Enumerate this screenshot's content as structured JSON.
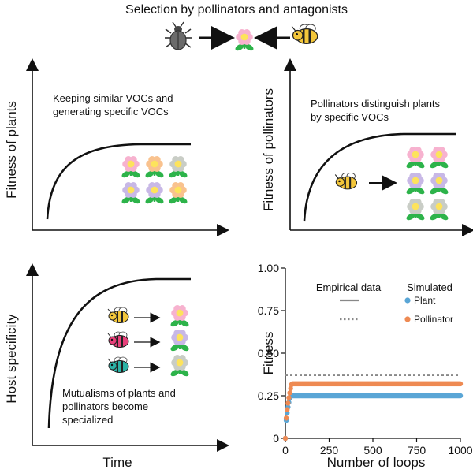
{
  "title": "Selection by pollinators and antagonists",
  "icons": {
    "header": [
      "beetle-icon",
      "flower-icon",
      "bee-icon"
    ],
    "flower_colors": {
      "pink": "#f7b2cf",
      "lavender": "#c8b8e6",
      "orange": "#f9c28e",
      "grey": "#c9cdc6",
      "center": "#fde35c",
      "leaf": "#2db34a"
    },
    "bee_variants": [
      "bee-yellow-icon",
      "bee-pink-icon",
      "bee-teal-icon"
    ]
  },
  "panel_tl": {
    "ylabel": "Fitness of plants",
    "text1": "Keeping similar VOCs and",
    "text2": "generating specific VOCs"
  },
  "panel_tr": {
    "ylabel": "Fitness of pollinators",
    "text1": "Pollinators distinguish plants",
    "text2": "by specific VOCs"
  },
  "panel_bl": {
    "ylabel": "Host specificity",
    "xlabel": "Time",
    "text1": "Mutualisms of plants and",
    "text2": "pollinators become",
    "text3": "specialized"
  },
  "chart_data": {
    "type": "line",
    "xlabel": "Number of loops",
    "ylabel": "Fitness",
    "xlim": [
      0,
      1000
    ],
    "ylim": [
      0,
      1
    ],
    "xticks": [
      "0",
      "250",
      "500",
      "750",
      "1000"
    ],
    "yticks": [
      "0",
      "0.25",
      "0.50",
      "0.75",
      "1.00"
    ],
    "legend_empirical_title": "Empirical data",
    "legend_simulated_title": "Simulated",
    "series": [
      {
        "name": "Plant",
        "color": "#5aa6d6",
        "x_start": 0,
        "x_end": 1000,
        "plateau": 0.25,
        "rise_end": 28
      },
      {
        "name": "Pollinator",
        "color": "#ee8a53",
        "x_start": 0,
        "x_end": 1000,
        "plateau": 0.32,
        "rise_end": 36
      }
    ],
    "empirical": {
      "value": 0.37,
      "color": "#888888"
    }
  }
}
